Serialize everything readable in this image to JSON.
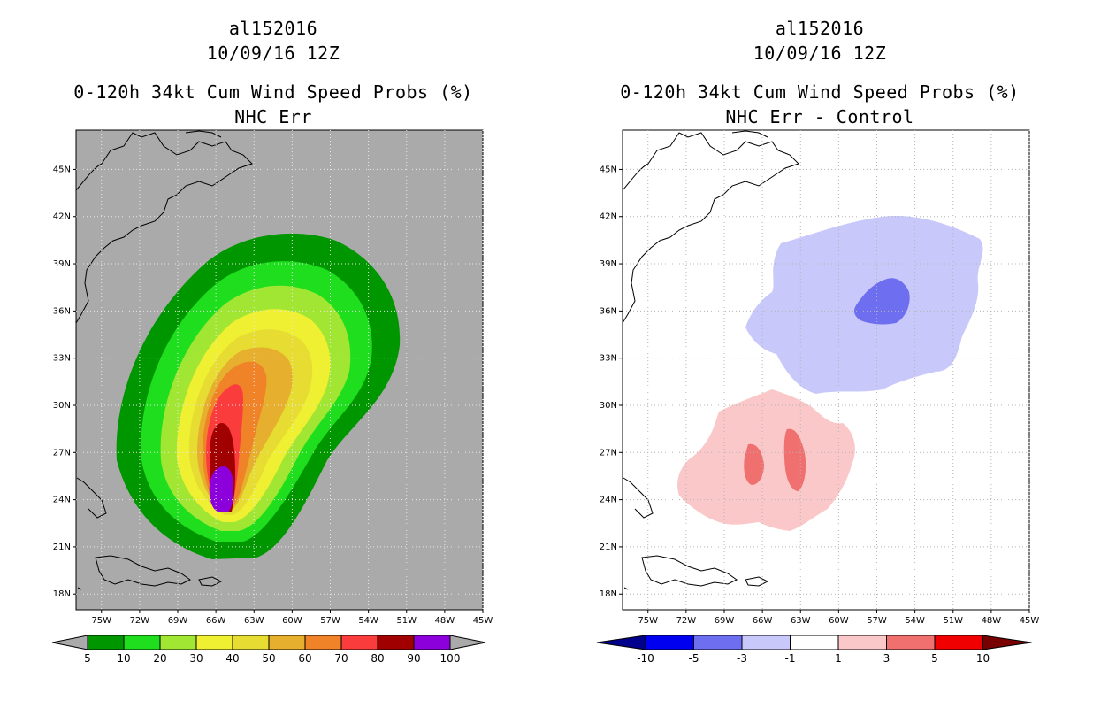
{
  "left": {
    "storm_id": "al152016",
    "datetime": "10/09/16 12Z",
    "product": "0-120h 34kt Cum Wind Speed Probs (%)",
    "subtitle": "NHC Err",
    "background_color": "#aaaaaa",
    "colorbar": {
      "labels": [
        "5",
        "10",
        "20",
        "30",
        "40",
        "50",
        "60",
        "70",
        "80",
        "90",
        "100"
      ],
      "colors": [
        "#009600",
        "#1ede1e",
        "#a0e632",
        "#f0f032",
        "#e6dc32",
        "#e6af2d",
        "#f08228",
        "#fa3c3c",
        "#a00000",
        "#8c00dc"
      ]
    }
  },
  "right": {
    "storm_id": "al152016",
    "datetime": "10/09/16 12Z",
    "product": "0-120h 34kt Cum Wind Speed Probs (%)",
    "subtitle": "NHC Err - Control",
    "background_color": "#ffffff",
    "colorbar": {
      "labels": [
        "-10",
        "-5",
        "-3",
        "-1",
        "1",
        "3",
        "5",
        "10"
      ],
      "colors": [
        "#00008c",
        "#0000f0",
        "#6e6ef0",
        "#c8c8fa",
        "#ffffff",
        "#fac8c8",
        "#f07070",
        "#f00000",
        "#780000"
      ]
    }
  },
  "axes": {
    "lat_labels": [
      "45N",
      "42N",
      "39N",
      "36N",
      "33N",
      "30N",
      "27N",
      "24N",
      "21N",
      "18N"
    ],
    "lat_values": [
      45,
      42,
      39,
      36,
      33,
      30,
      27,
      24,
      21,
      18
    ],
    "lon_labels": [
      "75W",
      "72W",
      "69W",
      "66W",
      "63W",
      "60W",
      "57W",
      "54W",
      "51W",
      "48W",
      "45W"
    ],
    "lon_values": [
      -75,
      -72,
      -69,
      -66,
      -63,
      -60,
      -57,
      -54,
      -51,
      -48,
      -45
    ]
  }
}
